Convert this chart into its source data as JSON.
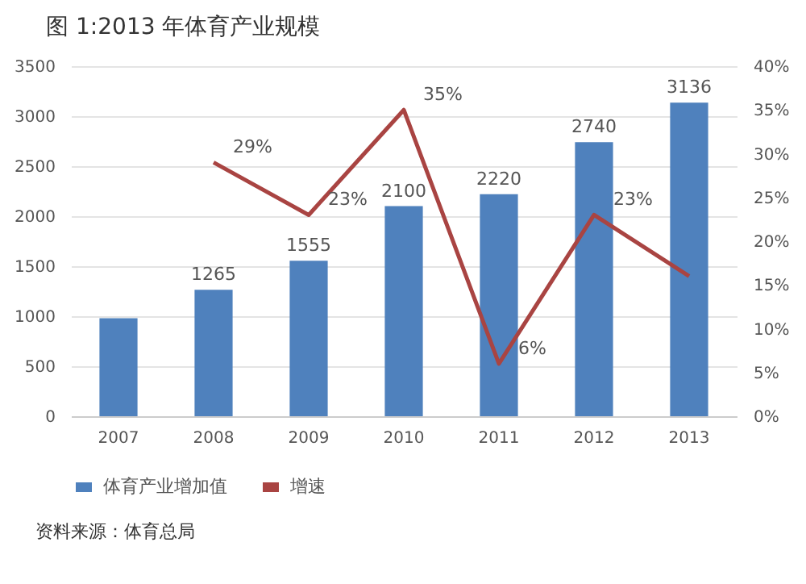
{
  "chart_data": {
    "type": "bar",
    "title": "图 1:2013 年体育产业规模",
    "categories": [
      "2007",
      "2008",
      "2009",
      "2010",
      "2011",
      "2012",
      "2013"
    ],
    "series": [
      {
        "name": "体育产业增加值",
        "color": "#4f81bd",
        "values": [
          980,
          1265,
          1555,
          2100,
          2220,
          2740,
          3136
        ],
        "value_labels": [
          null,
          "1265",
          "1555",
          "2100",
          "2220",
          "2740",
          "3136"
        ]
      },
      {
        "name": "增速",
        "type": "line",
        "axis": "y2",
        "color": "#a94442",
        "values": [
          null,
          29,
          23,
          35,
          6,
          23,
          16
        ],
        "value_labels": [
          null,
          "29%",
          "23%",
          "35%",
          "6%",
          "23%",
          null
        ]
      }
    ],
    "ylim": [
      0,
      3500
    ],
    "yticks": [
      0,
      500,
      1000,
      1500,
      2000,
      2500,
      3000,
      3500
    ],
    "y2lim": [
      0,
      40
    ],
    "y2ticks": [
      {
        "value": 0,
        "label": "0%"
      },
      {
        "value": 5,
        "label": "5%"
      },
      {
        "value": 10,
        "label": "10%"
      },
      {
        "value": 15,
        "label": "15%"
      },
      {
        "value": 20,
        "label": "20%"
      },
      {
        "value": 25,
        "label": "25%"
      },
      {
        "value": 30,
        "label": "30%"
      },
      {
        "value": 35,
        "label": "35%"
      },
      {
        "value": 40,
        "label": "40%"
      }
    ],
    "grid": "y",
    "legend": "bottom",
    "marker": "none",
    "line_style": "solid",
    "annotations": [
      "资料来源：体育总局"
    ]
  }
}
